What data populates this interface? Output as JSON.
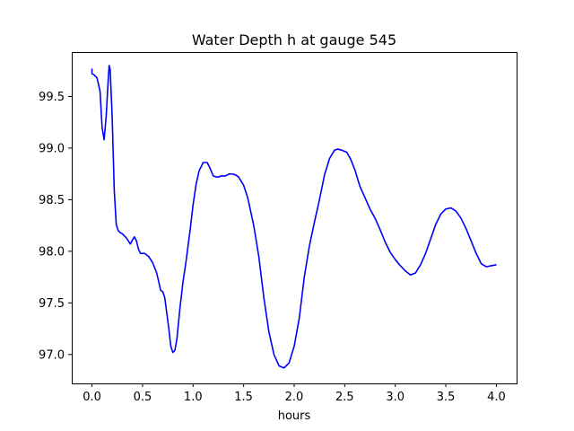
{
  "chart_data": {
    "type": "line",
    "title": "Water Depth h at gauge 545",
    "xlabel": "hours",
    "ylabel": "",
    "xlim": [
      -0.2,
      4.2
    ],
    "ylim": [
      96.72,
      99.93
    ],
    "x_ticks": [
      0.0,
      0.5,
      1.0,
      1.5,
      2.0,
      2.5,
      3.0,
      3.5,
      4.0
    ],
    "x_tick_labels": [
      "0.0",
      "0.5",
      "1.0",
      "1.5",
      "2.0",
      "2.5",
      "3.0",
      "3.5",
      "4.0"
    ],
    "y_ticks": [
      97.0,
      97.5,
      98.0,
      98.5,
      99.0,
      99.5
    ],
    "y_tick_labels": [
      "97.0",
      "97.5",
      "98.0",
      "98.5",
      "99.0",
      "99.5"
    ],
    "grid": false,
    "legend": "none",
    "series": [
      {
        "color": "#0000ff",
        "x": [
          0.0,
          0.0,
          0.02,
          0.05,
          0.08,
          0.1,
          0.12,
          0.14,
          0.16,
          0.17,
          0.18,
          0.2,
          0.22,
          0.24,
          0.26,
          0.28,
          0.3,
          0.34,
          0.38,
          0.4,
          0.42,
          0.44,
          0.46,
          0.48,
          0.5,
          0.52,
          0.56,
          0.6,
          0.64,
          0.68,
          0.7,
          0.72,
          0.74,
          0.76,
          0.78,
          0.8,
          0.82,
          0.84,
          0.87,
          0.9,
          0.93,
          0.97,
          1.0,
          1.03,
          1.06,
          1.1,
          1.14,
          1.17,
          1.2,
          1.23,
          1.25,
          1.28,
          1.32,
          1.36,
          1.38,
          1.42,
          1.45,
          1.5,
          1.54,
          1.6,
          1.65,
          1.7,
          1.75,
          1.8,
          1.85,
          1.9,
          1.95,
          2.0,
          2.05,
          2.1,
          2.15,
          2.2,
          2.25,
          2.3,
          2.35,
          2.4,
          2.43,
          2.47,
          2.52,
          2.56,
          2.6,
          2.65,
          2.7,
          2.75,
          2.8,
          2.85,
          2.9,
          2.95,
          3.0,
          3.05,
          3.1,
          3.15,
          3.2,
          3.25,
          3.3,
          3.35,
          3.4,
          3.45,
          3.5,
          3.55,
          3.6,
          3.65,
          3.7,
          3.75,
          3.8,
          3.85,
          3.9,
          3.95,
          4.0
        ],
        "y": [
          99.77,
          99.72,
          99.71,
          99.68,
          99.55,
          99.2,
          99.08,
          99.3,
          99.65,
          99.8,
          99.76,
          99.3,
          98.6,
          98.26,
          98.2,
          98.18,
          98.17,
          98.13,
          98.07,
          98.11,
          98.14,
          98.1,
          98.02,
          97.98,
          97.98,
          97.98,
          97.95,
          97.89,
          97.79,
          97.62,
          97.61,
          97.55,
          97.4,
          97.25,
          97.08,
          97.02,
          97.04,
          97.15,
          97.45,
          97.7,
          97.9,
          98.2,
          98.45,
          98.65,
          98.78,
          98.86,
          98.86,
          98.8,
          98.73,
          98.72,
          98.72,
          98.73,
          98.73,
          98.75,
          98.75,
          98.74,
          98.72,
          98.64,
          98.52,
          98.25,
          97.95,
          97.55,
          97.22,
          97.0,
          96.89,
          96.87,
          96.92,
          97.08,
          97.35,
          97.75,
          98.05,
          98.28,
          98.5,
          98.74,
          98.9,
          98.98,
          98.99,
          98.98,
          98.96,
          98.89,
          98.79,
          98.63,
          98.52,
          98.41,
          98.32,
          98.21,
          98.09,
          97.99,
          97.92,
          97.86,
          97.81,
          97.77,
          97.79,
          97.87,
          97.98,
          98.12,
          98.26,
          98.36,
          98.41,
          98.42,
          98.39,
          98.32,
          98.22,
          98.1,
          97.98,
          97.88,
          97.85,
          97.86,
          97.87
        ]
      }
    ]
  }
}
